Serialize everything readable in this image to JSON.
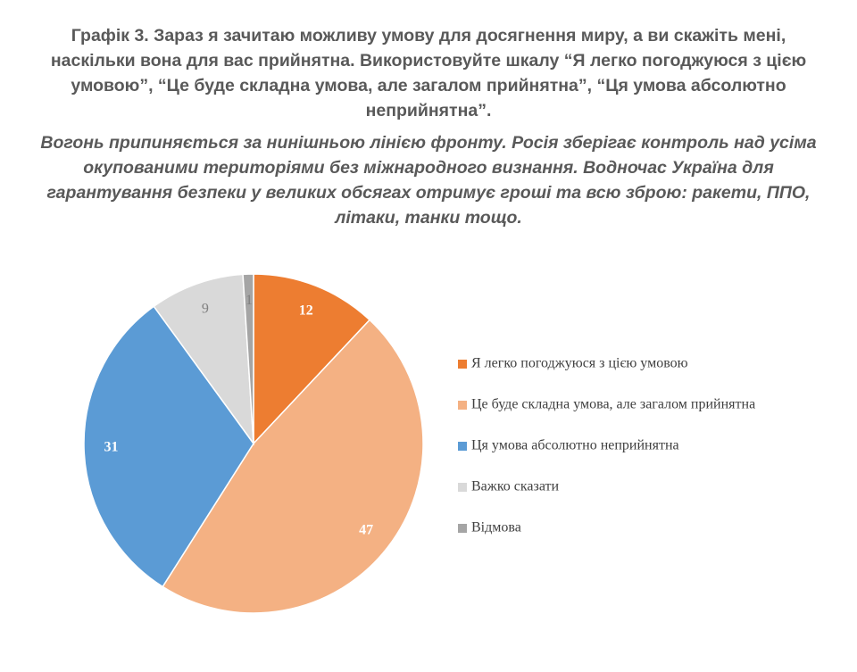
{
  "header": {
    "title": "Графік 3. Зараз я зачитаю можливу умову для досягнення миру, а ви скажіть мені, наскільки вона для вас прийнятна. Використовуйте шкалу “Я легко погоджуюся з цією умовою”, “Це буде складна умова, але загалом прийнятна”, “Ця умова абсолютно неприйнятна”.",
    "subtitle": "Вогонь припиняється за нинішньою лінією фронту. Росія зберігає контроль над усіма окупованими територіями без міжнародного визнання. Водночас Україна для гарантування безпеки у великих обсягах отримує гроші та всю зброю: ракети, ППО, літаки, танки тощо."
  },
  "chart_data": {
    "type": "pie",
    "title": "",
    "legend_position": "right",
    "categories": [
      "Я легко погоджуюся з цією умовою",
      "Це буде складна умова, але загалом прийнятна",
      "Ця умова абсолютно неприйнятна",
      "Важко сказати",
      "Відмова"
    ],
    "values": [
      12,
      47,
      31,
      9,
      1
    ],
    "labels": [
      "12",
      "47",
      "31",
      "9",
      "1"
    ],
    "colors": [
      "#ED7D31",
      "#F4B183",
      "#5B9BD5",
      "#D9D9D9",
      "#A5A5A5"
    ]
  }
}
